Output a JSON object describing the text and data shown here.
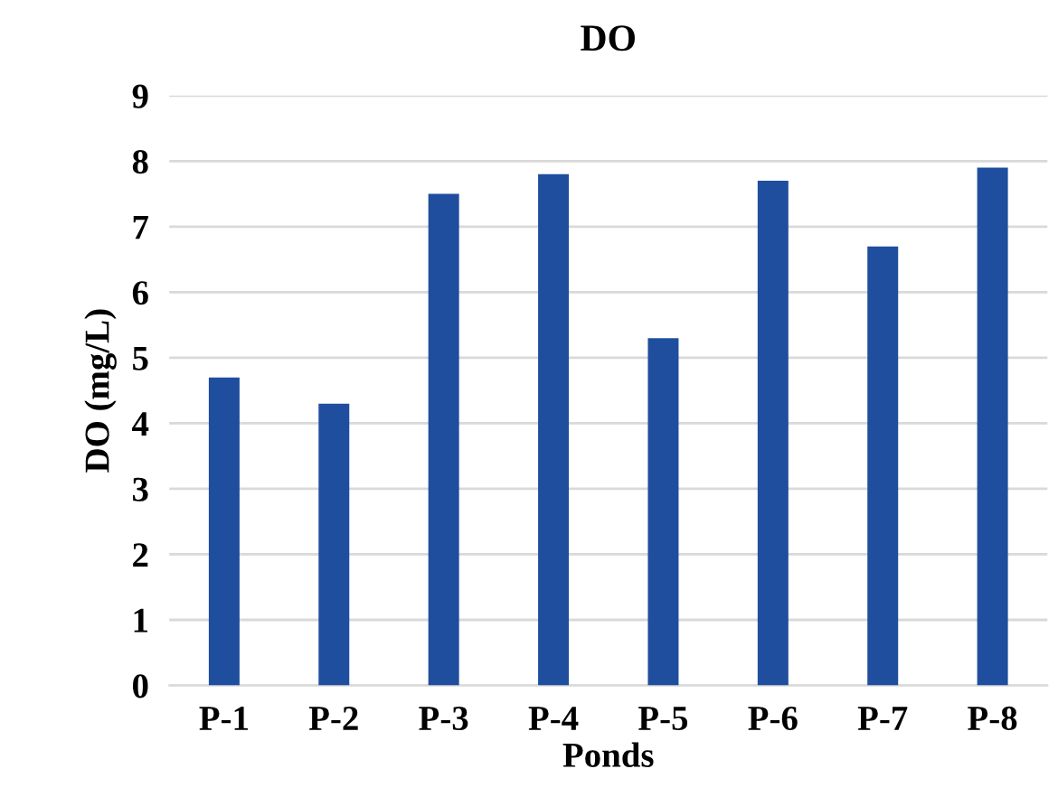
{
  "chart_data": {
    "type": "bar",
    "title": "DO",
    "xlabel": "Ponds",
    "ylabel": "DO (mg/L)",
    "categories": [
      "P-1",
      "P-2",
      "P-3",
      "P-4",
      "P-5",
      "P-6",
      "P-7",
      "P-8"
    ],
    "values": [
      4.7,
      4.3,
      7.5,
      7.8,
      5.3,
      7.7,
      6.7,
      7.9
    ],
    "color": "#1f4e9e",
    "ylim": [
      0,
      9
    ],
    "yticks": [
      0,
      1,
      2,
      3,
      4,
      5,
      6,
      7,
      8,
      9
    ],
    "grid": "y"
  }
}
